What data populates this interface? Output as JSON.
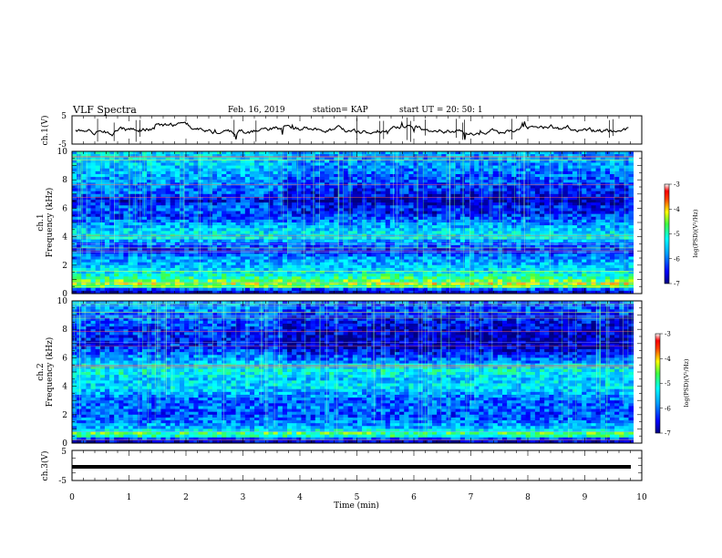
{
  "header": {
    "title": "VLF Spectra",
    "date": "Feb. 16, 2019",
    "station": "station= KAP",
    "start_ut": "start  UT =   20: 50: 1"
  },
  "chart_data": [
    {
      "type": "line",
      "panel": "ch1-waveform",
      "ylabel": "ch.1(V)",
      "ylim": [
        -5,
        5
      ],
      "yticks": [
        "5",
        "-5"
      ],
      "xlim": [
        0,
        10
      ],
      "series_color": "#000000",
      "approx_level": 0
    },
    {
      "type": "heatmap",
      "panel": "ch1-spectrogram",
      "ylabel_channel": "ch.1",
      "ylabel": "Frequency (kHz)",
      "ylim": [
        0,
        10
      ],
      "yticks": [
        "0",
        "2",
        "4",
        "6",
        "8",
        "10"
      ],
      "xlim": [
        0,
        9.85
      ],
      "colorbar": {
        "label": "log(PSD)(V²/Hz)",
        "range": [
          -7,
          -3
        ],
        "ticks": [
          "-3",
          "-4",
          "-5",
          "-6",
          "-7"
        ]
      },
      "frequency_profile_log_psd": [
        {
          "f": 0.2,
          "v": -6.7
        },
        {
          "f": 0.6,
          "v": -4.2
        },
        {
          "f": 1.0,
          "v": -4.8
        },
        {
          "f": 1.5,
          "v": -5.3
        },
        {
          "f": 2.0,
          "v": -5.6
        },
        {
          "f": 2.5,
          "v": -5.8
        },
        {
          "f": 3.0,
          "v": -6.4
        },
        {
          "f": 3.5,
          "v": -6.0
        },
        {
          "f": 4.0,
          "v": -5.3
        },
        {
          "f": 4.5,
          "v": -5.5
        },
        {
          "f": 5.0,
          "v": -5.9
        },
        {
          "f": 5.5,
          "v": -6.3
        },
        {
          "f": 6.0,
          "v": -6.0
        },
        {
          "f": 6.5,
          "v": -6.5
        },
        {
          "f": 7.0,
          "v": -6.1
        },
        {
          "f": 8.0,
          "v": -5.8
        },
        {
          "f": 9.0,
          "v": -5.5
        },
        {
          "f": 10.0,
          "v": -5.4
        }
      ]
    },
    {
      "type": "heatmap",
      "panel": "ch2-spectrogram",
      "ylabel_channel": "ch.2",
      "ylabel": "Frequency (kHz)",
      "ylim": [
        0,
        10
      ],
      "yticks": [
        "0",
        "2",
        "4",
        "6",
        "8",
        "10"
      ],
      "xlim": [
        0,
        9.85
      ],
      "colorbar": {
        "label": "log(PSD)(V²/Hz)",
        "range": [
          -7,
          -3
        ],
        "ticks": [
          "-3",
          "-4",
          "-5",
          "-6",
          "-7"
        ]
      },
      "frequency_profile_log_psd": [
        {
          "f": 0.2,
          "v": -6.7
        },
        {
          "f": 0.6,
          "v": -4.5
        },
        {
          "f": 1.0,
          "v": -5.6
        },
        {
          "f": 1.5,
          "v": -5.9
        },
        {
          "f": 2.0,
          "v": -6.2
        },
        {
          "f": 2.5,
          "v": -6.0
        },
        {
          "f": 3.0,
          "v": -6.1
        },
        {
          "f": 3.5,
          "v": -5.7
        },
        {
          "f": 4.0,
          "v": -5.4
        },
        {
          "f": 4.5,
          "v": -5.5
        },
        {
          "f": 5.0,
          "v": -5.2
        },
        {
          "f": 5.5,
          "v": -5.4
        },
        {
          "f": 6.0,
          "v": -5.8
        },
        {
          "f": 6.5,
          "v": -6.2
        },
        {
          "f": 7.0,
          "v": -6.5
        },
        {
          "f": 8.0,
          "v": -6.3
        },
        {
          "f": 9.0,
          "v": -6.0
        },
        {
          "f": 10.0,
          "v": -5.6
        }
      ]
    },
    {
      "type": "line",
      "panel": "ch3-waveform",
      "ylabel": "ch.3(V)",
      "ylim": [
        -5,
        5
      ],
      "yticks": [
        "5",
        "0",
        "-5"
      ],
      "xlim": [
        0,
        10
      ],
      "xlabel": "Time (min)",
      "xticks": [
        "0",
        "1",
        "2",
        "3",
        "4",
        "5",
        "6",
        "7",
        "8",
        "9",
        "10"
      ],
      "series_color": "#000000",
      "approx_level": 0
    }
  ]
}
